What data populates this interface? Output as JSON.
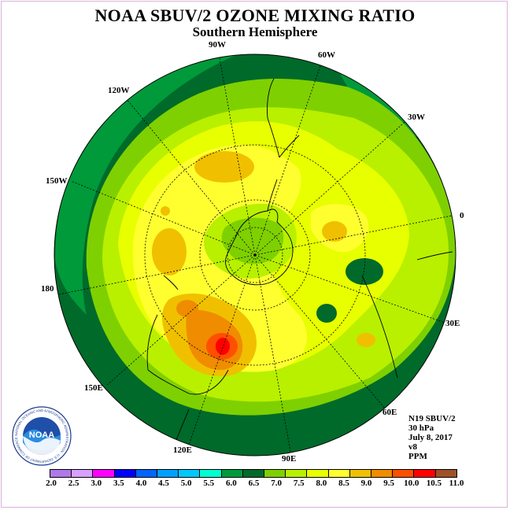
{
  "title": "NOAA SBUV/2 OZONE MIXING RATIO",
  "subtitle": "Southern Hemisphere",
  "longitude_labels": [
    "90W",
    "60W",
    "30W",
    "0",
    "30E",
    "60E",
    "90E",
    "120E",
    "150E",
    "180",
    "150W",
    "120W"
  ],
  "info": {
    "instrument": "N19 SBUV/2",
    "level": "30 hPa",
    "date": "July 8, 2017",
    "version": "v8",
    "units": "PPM"
  },
  "logo_text": "NOAA",
  "logo_ring_text": "NATIONAL OCEANIC AND ATMOSPHERIC ADMINISTRATION · U.S. DEPARTMENT OF COMMERCE",
  "colorbar": {
    "ticks": [
      "2.0",
      "2.5",
      "3.0",
      "3.5",
      "4.0",
      "4.5",
      "5.0",
      "5.5",
      "6.0",
      "6.5",
      "7.0",
      "7.5",
      "8.0",
      "8.5",
      "9.0",
      "9.5",
      "10.0",
      "10.5",
      "11.0"
    ],
    "colors": [
      "#b078e8",
      "#d8a0ff",
      "#ff00ff",
      "#0000ff",
      "#0064ff",
      "#00a0ff",
      "#00c8ff",
      "#00ffd0",
      "#009a3a",
      "#006a2a",
      "#7fd000",
      "#b8f000",
      "#e8ff00",
      "#ffff30",
      "#f0c000",
      "#f08c00",
      "#ff5000",
      "#ff0000",
      "#a05028"
    ]
  },
  "map_colors": {
    "c65": "#006a2a",
    "c60": "#009a3a",
    "c70": "#7fd000",
    "c75": "#b8f000",
    "c80": "#e8ff00",
    "c85": "#ffff30",
    "c90": "#f0c000",
    "c95": "#f08c00",
    "c100": "#ff5000",
    "c105": "#ff0000"
  }
}
